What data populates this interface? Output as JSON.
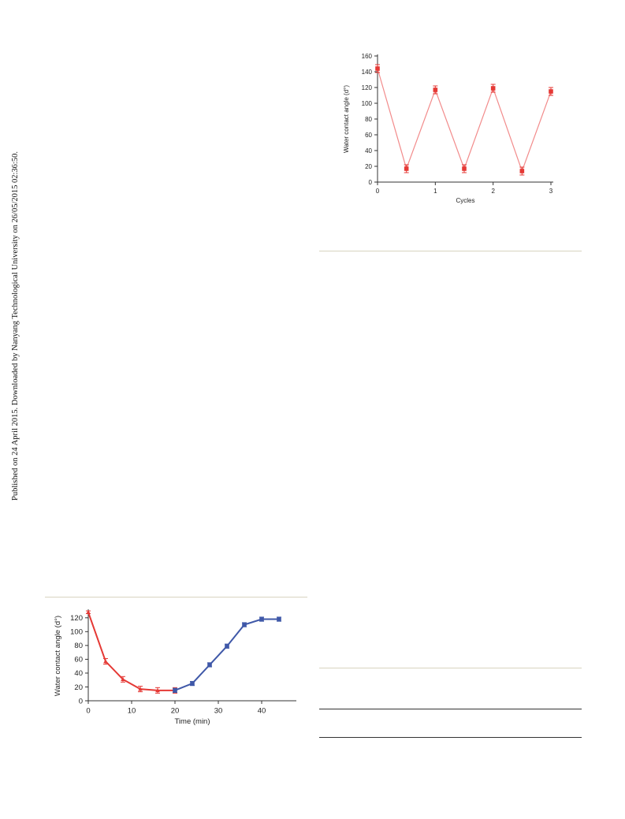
{
  "margin_note": "Published on 24 April 2015. Downloaded by Nanyang Technological University on 26/05/2015 02:36:50.",
  "colors": {
    "red": "#e53935",
    "pink_line": "#f28b8b",
    "blue": "#3f58a8",
    "rule_tan": "#d8d4c0"
  },
  "chart_data": [
    {
      "type": "line",
      "xlabel": "Cycles",
      "ylabel": "Water contact angle (d°)",
      "xlim": [
        0,
        3
      ],
      "ylim": [
        0,
        160
      ],
      "xticks": [
        0,
        1,
        2,
        3
      ],
      "yticks": [
        0,
        20,
        40,
        60,
        80,
        100,
        120,
        140,
        160
      ],
      "grid": false,
      "series": [
        {
          "color": "#e53935",
          "line_color": "#f28b8b",
          "marker": "square",
          "x": [
            0,
            0.5,
            1,
            1.5,
            2,
            2.5,
            3
          ],
          "y": [
            144,
            17,
            117,
            17,
            119,
            14,
            115
          ],
          "error": [
            5,
            5,
            5,
            5,
            5,
            5,
            5
          ]
        }
      ]
    },
    {
      "type": "line",
      "xlabel": "Time (min)",
      "ylabel": "Water contact angle (d°)",
      "xlim": [
        0,
        48
      ],
      "ylim": [
        0,
        130
      ],
      "xticks": [
        0,
        10,
        20,
        30,
        40
      ],
      "yticks": [
        0,
        20,
        40,
        60,
        80,
        100,
        120
      ],
      "grid": false,
      "series": [
        {
          "color": "#e53935",
          "marker": "triangle",
          "x": [
            0,
            4,
            8,
            12,
            16,
            20
          ],
          "y": [
            128,
            57,
            31,
            17,
            15,
            15
          ],
          "error": [
            2,
            4,
            4,
            4,
            4,
            4
          ]
        },
        {
          "color": "#3f58a8",
          "marker": "square",
          "x": [
            20,
            24,
            28,
            32,
            36,
            40,
            44
          ],
          "y": [
            15,
            25,
            52,
            79,
            110,
            118,
            118
          ],
          "error": [
            3,
            3,
            3,
            3,
            3,
            3,
            3
          ]
        }
      ]
    }
  ]
}
